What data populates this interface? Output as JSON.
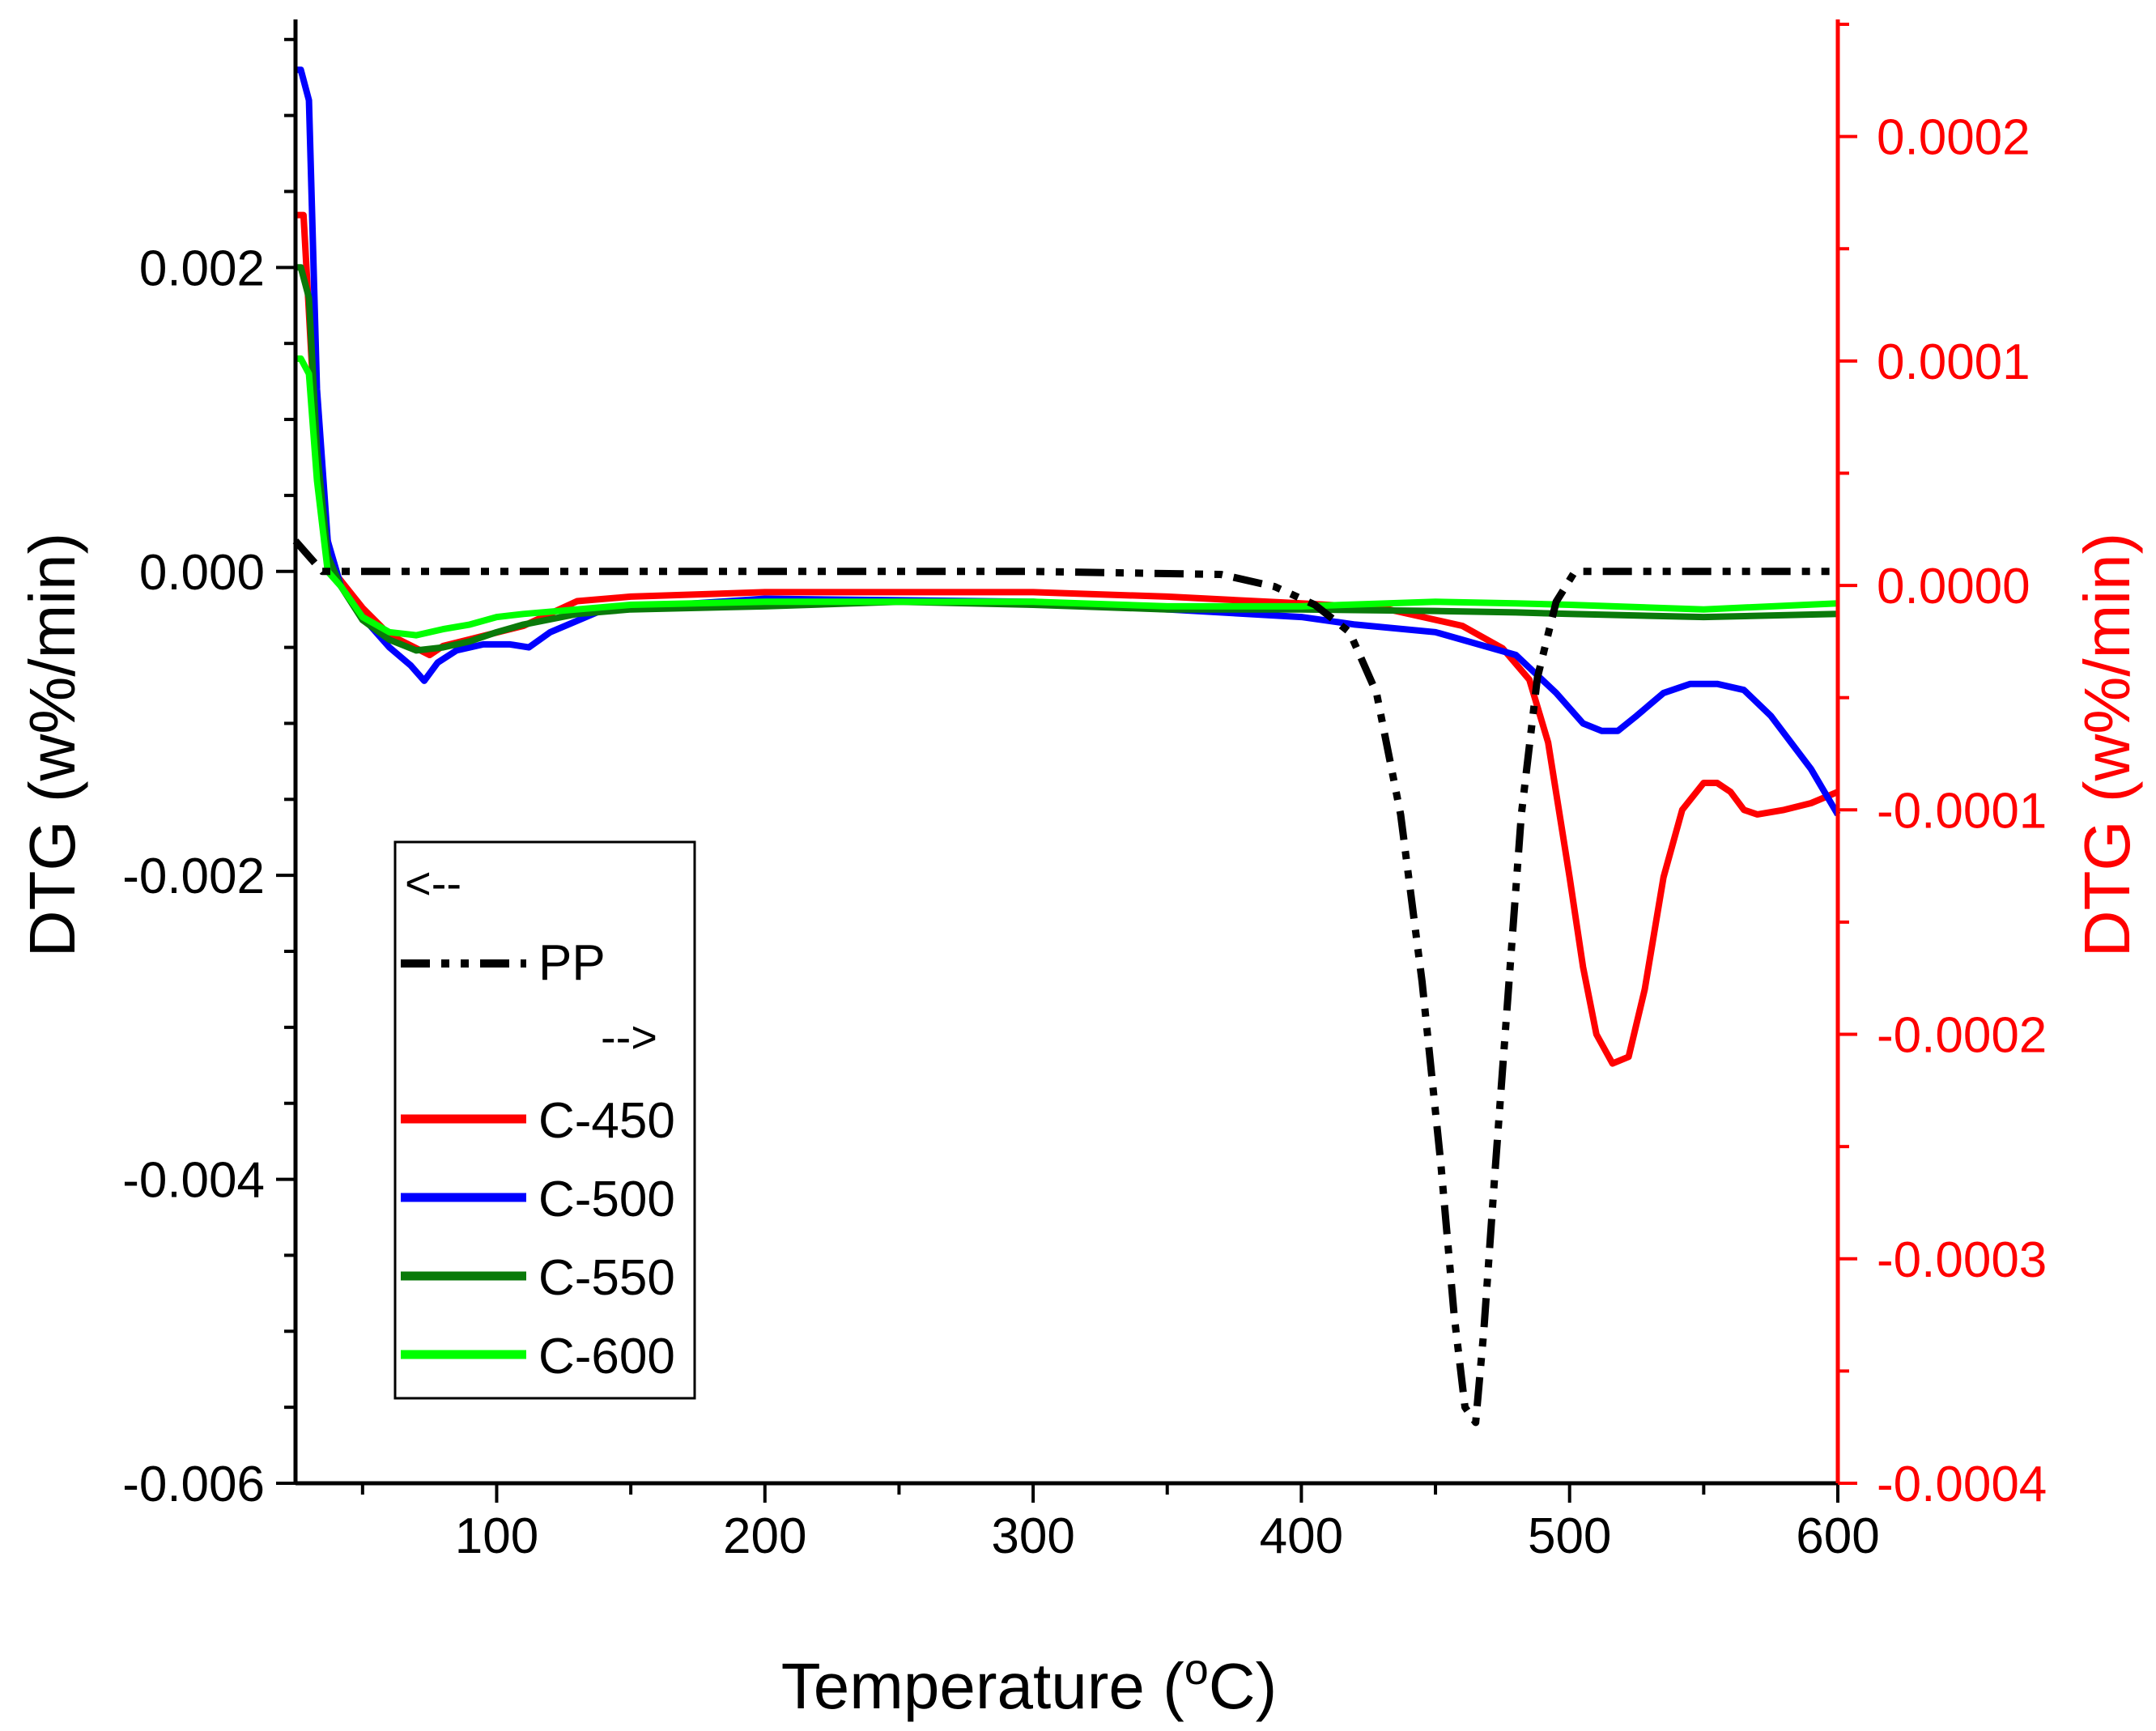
{
  "chart_data": {
    "type": "line",
    "xlabel": "Temperature (",
    "xlabel_sup": "o",
    "xlabel_end": "C)",
    "ylabel_left": "DTG (w%/min)",
    "ylabel_right": "DTG (w%/min)",
    "xlim": [
      25,
      600
    ],
    "ylim_left": [
      -0.006,
      0.0036
    ],
    "ylim_right": [
      -0.0004,
      0.00025
    ],
    "x_ticks": [
      {
        "value": 100,
        "label": "100"
      },
      {
        "value": 200,
        "label": "200"
      },
      {
        "value": 300,
        "label": "300"
      },
      {
        "value": 400,
        "label": "400"
      },
      {
        "value": 500,
        "label": "500"
      },
      {
        "value": 600,
        "label": "600"
      }
    ],
    "y_left_ticks": [
      {
        "value": 0.002,
        "label": "0.002"
      },
      {
        "value": 0.0,
        "label": "0.000"
      },
      {
        "value": -0.002,
        "label": "-0.002"
      },
      {
        "value": -0.004,
        "label": "-0.004"
      },
      {
        "value": -0.006,
        "label": "-0.006"
      }
    ],
    "y_right_ticks": [
      {
        "value": 0.0002,
        "label": "0.0002"
      },
      {
        "value": 0.0001,
        "label": "0.0001"
      },
      {
        "value": 0.0,
        "label": "0.0000"
      },
      {
        "value": -0.0001,
        "label": "-0.0001"
      },
      {
        "value": -0.0002,
        "label": "-0.0002"
      },
      {
        "value": -0.0003,
        "label": "-0.0003"
      },
      {
        "value": -0.0004,
        "label": "-0.0004"
      }
    ],
    "colors": {
      "left_axis": "#000000",
      "right_axis": "#ff0000"
    },
    "legend": {
      "placement": "bottom-left",
      "left_arrow": "<--",
      "right_arrow": "-->",
      "entries": [
        {
          "label": "PP",
          "color": "#000000",
          "dash": "dashdotdot"
        },
        {
          "label": "C-450",
          "color": "#ff0000",
          "dash": "solid"
        },
        {
          "label": "C-500",
          "color": "#0000ff",
          "dash": "solid"
        },
        {
          "label": "C-550",
          "color": "#0a7a0a",
          "dash": "solid"
        },
        {
          "label": "C-600",
          "color": "#00ff00",
          "dash": "solid"
        }
      ]
    },
    "series": [
      {
        "name": "PP",
        "axis": "left",
        "color": "#000000",
        "dash": "dashdotdot",
        "x": [
          25,
          35,
          50,
          100,
          200,
          300,
          370,
          390,
          405,
          418,
          428,
          437,
          445,
          452,
          457,
          461,
          465,
          468,
          472,
          477,
          482,
          488,
          495,
          502,
          520,
          560,
          600
        ],
        "y": [
          0.0002,
          0.0,
          0.0,
          0.0,
          0.0,
          0.0,
          -2e-05,
          -0.0001,
          -0.00022,
          -0.0004,
          -0.0008,
          -0.0016,
          -0.0027,
          -0.0039,
          -0.0049,
          -0.0055,
          -0.0056,
          -0.005,
          -0.004,
          -0.0028,
          -0.0016,
          -0.0007,
          -0.0002,
          0.0,
          0.0,
          0.0,
          0.0
        ]
      },
      {
        "name": "C-450",
        "axis": "right",
        "color": "#ff0000",
        "dash": "solid",
        "x": [
          25,
          28,
          31,
          35,
          40,
          50,
          60,
          70,
          75,
          80,
          90,
          100,
          110,
          130,
          150,
          200,
          250,
          300,
          350,
          400,
          430,
          460,
          475,
          485,
          492,
          500,
          505,
          510,
          516,
          522,
          528,
          535,
          542,
          550,
          555,
          560,
          565,
          570,
          580,
          590,
          600
        ],
        "y": [
          0.000165,
          0.000165,
          0.0001,
          3e-05,
          5e-06,
          -1e-05,
          -2.2e-05,
          -2.8e-05,
          -3.1e-05,
          -2.7e-05,
          -2.4e-05,
          -2.1e-05,
          -1.8e-05,
          -7e-06,
          -5e-06,
          -3e-06,
          -3e-06,
          -3e-06,
          -5e-06,
          -8e-06,
          -1e-05,
          -1.8e-05,
          -2.8e-05,
          -4.2e-05,
          -7e-05,
          -0.00013,
          -0.00017,
          -0.0002,
          -0.000213,
          -0.00021,
          -0.00018,
          -0.00013,
          -0.0001,
          -8.8e-05,
          -8.8e-05,
          -9.2e-05,
          -0.0001,
          -0.000102,
          -0.0001,
          -9.7e-05,
          -9.2e-05
        ]
      },
      {
        "name": "C-500",
        "axis": "left",
        "color": "#0000ff",
        "dash": "solid",
        "x": [
          25,
          27,
          30,
          33,
          37,
          42,
          50,
          60,
          68,
          73,
          78,
          85,
          95,
          105,
          112,
          120,
          140,
          200,
          300,
          400,
          420,
          450,
          480,
          495,
          505,
          512,
          518,
          525,
          535,
          545,
          555,
          565,
          575,
          590,
          600
        ],
        "y": [
          0.0033,
          0.0033,
          0.0031,
          0.0012,
          0.0002,
          -0.0001,
          -0.0003,
          -0.0005,
          -0.00062,
          -0.00072,
          -0.0006,
          -0.00052,
          -0.00048,
          -0.00048,
          -0.0005,
          -0.0004,
          -0.00025,
          -0.00018,
          -0.0002,
          -0.0003,
          -0.00035,
          -0.0004,
          -0.00055,
          -0.0008,
          -0.001,
          -0.00105,
          -0.00105,
          -0.00095,
          -0.0008,
          -0.00074,
          -0.00074,
          -0.00078,
          -0.00095,
          -0.0013,
          -0.0016
        ]
      },
      {
        "name": "C-550",
        "axis": "left",
        "color": "#0a7a0a",
        "dash": "solid",
        "x": [
          25,
          27,
          30,
          33,
          37,
          42,
          50,
          60,
          70,
          80,
          90,
          100,
          110,
          130,
          150,
          200,
          250,
          300,
          350,
          400,
          450,
          480,
          500,
          550,
          600
        ],
        "y": [
          0.002,
          0.002,
          0.0018,
          0.0008,
          0.0001,
          -0.0001,
          -0.00032,
          -0.00045,
          -0.00052,
          -0.0005,
          -0.00046,
          -0.0004,
          -0.00035,
          -0.00028,
          -0.00025,
          -0.00023,
          -0.0002,
          -0.00022,
          -0.00025,
          -0.00025,
          -0.00026,
          -0.00027,
          -0.00028,
          -0.0003,
          -0.00028
        ]
      },
      {
        "name": "C-600",
        "axis": "left",
        "color": "#00ff00",
        "dash": "solid",
        "x": [
          25,
          27,
          30,
          33,
          37,
          42,
          50,
          60,
          70,
          80,
          90,
          100,
          110,
          130,
          150,
          200,
          250,
          300,
          350,
          400,
          450,
          480,
          500,
          550,
          600
        ],
        "y": [
          0.0014,
          0.0014,
          0.0013,
          0.0006,
          0.0,
          -0.0001,
          -0.0003,
          -0.0004,
          -0.00042,
          -0.00038,
          -0.00035,
          -0.0003,
          -0.00028,
          -0.00025,
          -0.00022,
          -0.0002,
          -0.0002,
          -0.0002,
          -0.00023,
          -0.00023,
          -0.0002,
          -0.00021,
          -0.00022,
          -0.00025,
          -0.00021
        ]
      }
    ]
  }
}
